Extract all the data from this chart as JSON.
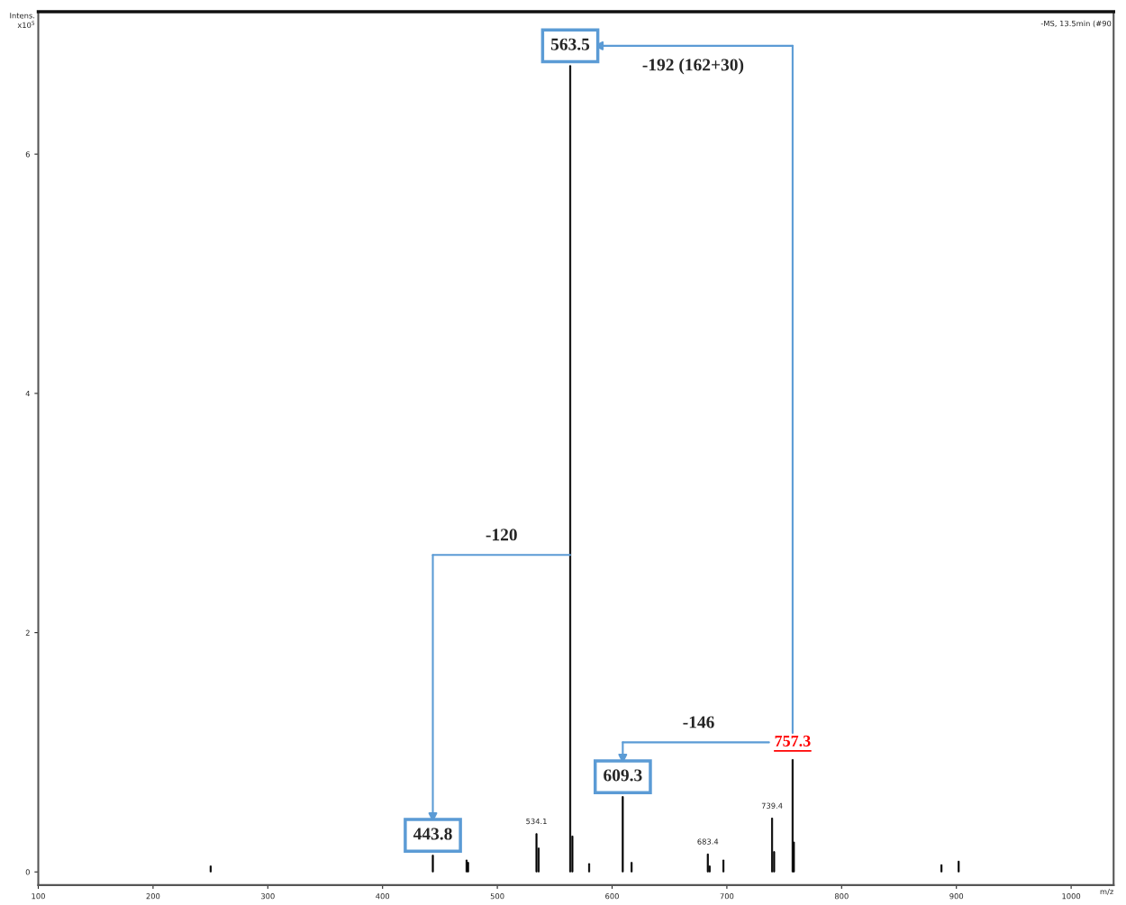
{
  "chart_data": {
    "type": "bar",
    "color": "#000000",
    "x": [
      250.2,
      443.8,
      473.2,
      474.5,
      534.1,
      536.0,
      563.5,
      565.4,
      580.0,
      609.3,
      617.0,
      683.4,
      685.0,
      697.0,
      739.4,
      741.2,
      757.3,
      758.4,
      887.0,
      902.0
    ],
    "values": [
      0.05,
      0.14,
      0.1,
      0.08,
      0.32,
      0.2,
      6.74,
      0.3,
      0.07,
      0.63,
      0.08,
      0.15,
      0.05,
      0.1,
      0.45,
      0.17,
      0.94,
      0.25,
      0.06,
      0.09
    ],
    "xlim": [
      100,
      1037
    ],
    "ylim": [
      -0.11,
      7.19
    ],
    "xticks": [
      100,
      200,
      300,
      400,
      500,
      600,
      700,
      800,
      900,
      1000
    ],
    "yticks": [
      0,
      2,
      4,
      6
    ],
    "xlabel": "m/z",
    "ylabel": "Intens.\nx10$^{5}$",
    "annotations": [
      {
        "text": "563.5",
        "x": 563.5,
        "y": 6.74
      },
      {
        "text": "443.8",
        "x": 443.8,
        "y": 0.14
      },
      {
        "text": "609.3",
        "x": 609.3,
        "y": 0.63
      },
      {
        "text": "757.3",
        "x": 757.3,
        "y": 0.94
      },
      {
        "text": "534.1",
        "x": 534.1,
        "y": 0.32
      },
      {
        "text": "683.4",
        "x": 683.4,
        "y": 0.15
      },
      {
        "text": "739.4",
        "x": 739.4,
        "y": 0.45
      },
      "-192 (162+30)",
      "-120",
      "-146",
      "-MS, 13.5min (#90"
    ],
    "grid": false
  }
}
